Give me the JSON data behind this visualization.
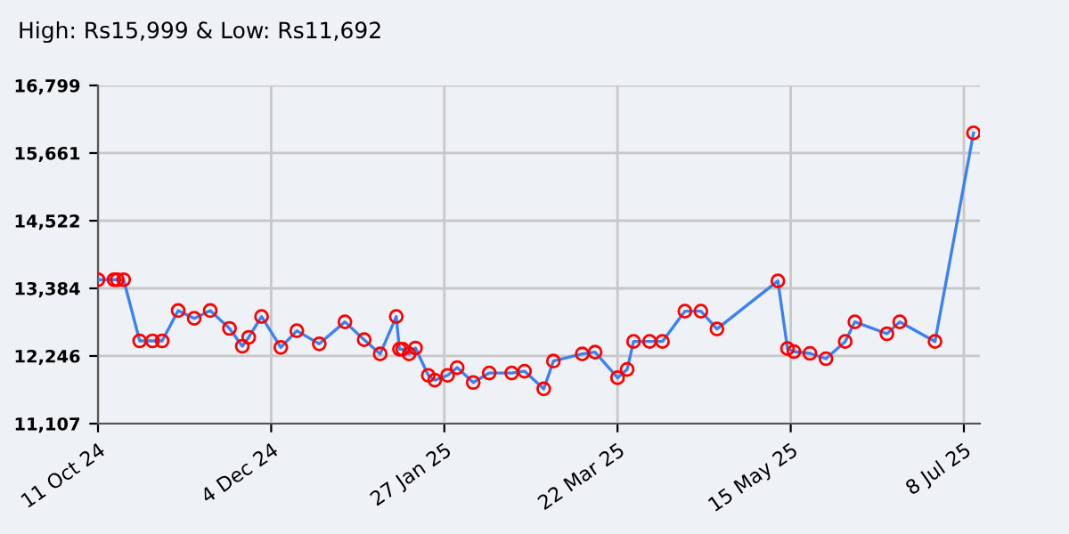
{
  "chart_data": {
    "type": "line",
    "title": "High: Rs15,999 & Low: Rs11,692",
    "x": [
      "2024-10-11",
      "2024-10-16",
      "2024-10-17",
      "2024-10-19",
      "2024-10-24",
      "2024-10-28",
      "2024-10-31",
      "2024-11-05",
      "2024-11-10",
      "2024-11-15",
      "2024-11-21",
      "2024-11-25",
      "2024-11-27",
      "2024-12-01",
      "2024-12-07",
      "2024-12-12",
      "2024-12-19",
      "2024-12-27",
      "2025-01-02",
      "2025-01-07",
      "2025-01-12",
      "2025-01-13",
      "2025-01-14",
      "2025-01-16",
      "2025-01-18",
      "2025-01-22",
      "2025-01-24",
      "2025-01-28",
      "2025-01-31",
      "2025-02-05",
      "2025-02-10",
      "2025-02-17",
      "2025-02-21",
      "2025-02-27",
      "2025-03-02",
      "2025-03-11",
      "2025-03-15",
      "2025-03-22",
      "2025-03-25",
      "2025-03-27",
      "2025-04-01",
      "2025-04-05",
      "2025-04-12",
      "2025-04-17",
      "2025-04-22",
      "2025-05-11",
      "2025-05-14",
      "2025-05-16",
      "2025-05-21",
      "2025-05-26",
      "2025-06-01",
      "2025-06-04",
      "2025-06-14",
      "2025-06-18",
      "2025-06-29",
      "2025-07-11"
    ],
    "series": [
      {
        "color": "#3b82f0",
        "values": [
          13530,
          13530,
          13530,
          13530,
          12500,
          12500,
          12500,
          13010,
          12880,
          13010,
          12710,
          12410,
          12560,
          12910,
          12390,
          12670,
          12450,
          12820,
          12520,
          12280,
          12910,
          12360,
          12360,
          12280,
          12380,
          11920,
          11840,
          11920,
          12050,
          11800,
          11960,
          11960,
          11990,
          11692,
          12160,
          12280,
          12310,
          11880,
          12020,
          12490,
          12490,
          12490,
          13000,
          13000,
          12700,
          13510,
          12370,
          12320,
          12290,
          12200,
          12490,
          12820,
          12620,
          12820,
          12490,
          15999
        ]
      }
    ],
    "marker": "circle",
    "line_style": "solid",
    "grid": true,
    "legend": false,
    "xlim": [
      "2024-10-11",
      "2025-07-13"
    ],
    "xticks": [
      {
        "value": "2024-10-11",
        "label": "11 Oct 24"
      },
      {
        "value": "2024-12-04",
        "label": "4 Dec 24"
      },
      {
        "value": "2025-01-27",
        "label": "27 Jan 25"
      },
      {
        "value": "2025-03-22",
        "label": "22 Mar 25"
      },
      {
        "value": "2025-05-15",
        "label": "15 May 25"
      },
      {
        "value": "2025-07-08",
        "label": "8 Jul 25"
      }
    ],
    "ylim": [
      11107,
      16799
    ],
    "yticks": [
      {
        "value": 11107,
        "label": "11,107"
      },
      {
        "value": 12246,
        "label": "12,246"
      },
      {
        "value": 13384,
        "label": "13,384"
      },
      {
        "value": 14522,
        "label": "14,522"
      },
      {
        "value": 15661,
        "label": "15,661"
      },
      {
        "value": 16799,
        "label": "16,799"
      }
    ]
  }
}
